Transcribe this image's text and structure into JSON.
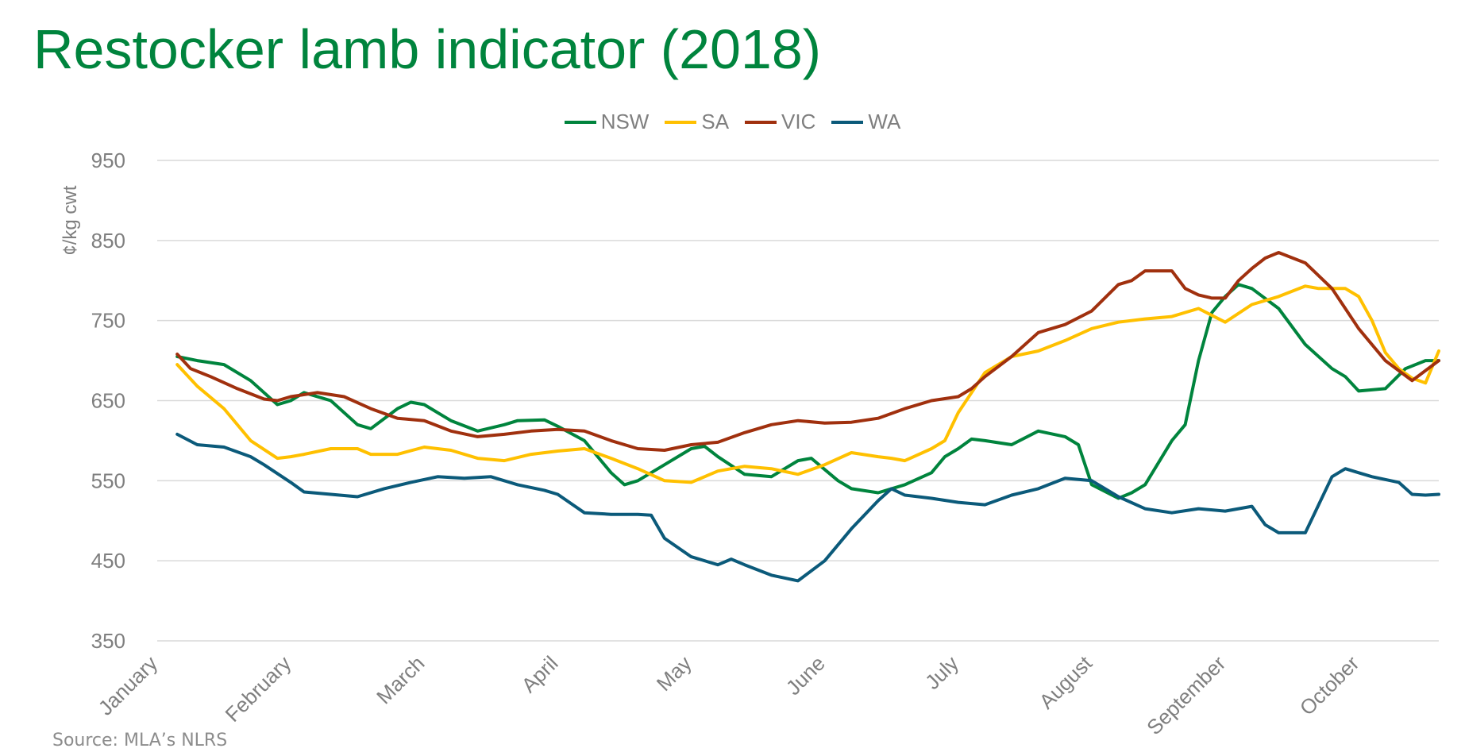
{
  "title": "Restocker lamb indicator (2018)",
  "source": "Source: MLA’s NLRS",
  "chart_data": {
    "type": "line",
    "title": "Restocker lamb indicator (2018)",
    "ylabel": "¢/kg cwt",
    "xlabel": "",
    "ylim": [
      350,
      950
    ],
    "yticks": [
      350,
      450,
      550,
      650,
      750,
      850,
      950
    ],
    "xlim": [
      0,
      9.6
    ],
    "months": [
      "January",
      "February",
      "March",
      "April",
      "May",
      "June",
      "July",
      "August",
      "September",
      "October"
    ],
    "grid": true,
    "legend_position": "top-center",
    "series": [
      {
        "name": "NSW",
        "color": "#00843D",
        "x": [
          0.15,
          0.3,
          0.5,
          0.7,
          0.9,
          1.0,
          1.1,
          1.3,
          1.5,
          1.6,
          1.8,
          1.9,
          2.0,
          2.2,
          2.4,
          2.6,
          2.7,
          2.9,
          3.0,
          3.2,
          3.3,
          3.4,
          3.5,
          3.6,
          3.8,
          4.0,
          4.1,
          4.2,
          4.4,
          4.6,
          4.8,
          4.9,
          5.1,
          5.2,
          5.4,
          5.6,
          5.8,
          5.9,
          6.0,
          6.1,
          6.2,
          6.4,
          6.6,
          6.8,
          6.9,
          7.0,
          7.2,
          7.3,
          7.4,
          7.6,
          7.7,
          7.8,
          7.9,
          8.0,
          8.1,
          8.2,
          8.4,
          8.6,
          8.8,
          8.9,
          9.0,
          9.2,
          9.35,
          9.5,
          9.6
        ],
        "values": [
          705,
          700,
          695,
          675,
          645,
          650,
          660,
          650,
          620,
          615,
          640,
          648,
          645,
          625,
          612,
          620,
          625,
          626,
          618,
          600,
          580,
          560,
          545,
          550,
          570,
          590,
          593,
          580,
          558,
          555,
          575,
          578,
          550,
          540,
          535,
          545,
          560,
          580,
          590,
          602,
          600,
          595,
          612,
          605,
          595,
          545,
          528,
          535,
          545,
          600,
          620,
          700,
          760,
          780,
          795,
          790,
          765,
          720,
          690,
          680,
          662,
          665,
          690,
          700,
          700
        ]
      },
      {
        "name": "SA",
        "color": "#FFC000",
        "x": [
          0.15,
          0.3,
          0.5,
          0.7,
          0.9,
          1.0,
          1.1,
          1.3,
          1.5,
          1.6,
          1.8,
          2.0,
          2.2,
          2.4,
          2.6,
          2.8,
          3.0,
          3.2,
          3.4,
          3.6,
          3.8,
          4.0,
          4.2,
          4.4,
          4.6,
          4.8,
          5.0,
          5.2,
          5.4,
          5.5,
          5.6,
          5.8,
          5.9,
          6.0,
          6.1,
          6.2,
          6.4,
          6.6,
          6.8,
          7.0,
          7.2,
          7.4,
          7.6,
          7.8,
          8.0,
          8.2,
          8.4,
          8.6,
          8.7,
          8.9,
          9.0,
          9.1,
          9.2,
          9.3,
          9.4,
          9.5,
          9.6
        ],
        "values": [
          695,
          668,
          640,
          600,
          578,
          580,
          583,
          590,
          590,
          583,
          583,
          592,
          588,
          578,
          575,
          583,
          587,
          590,
          578,
          565,
          550,
          548,
          562,
          568,
          565,
          558,
          570,
          585,
          580,
          578,
          575,
          590,
          600,
          635,
          660,
          685,
          705,
          712,
          725,
          740,
          748,
          752,
          755,
          765,
          748,
          770,
          780,
          793,
          790,
          790,
          780,
          750,
          710,
          690,
          678,
          672,
          712
        ]
      },
      {
        "name": "VIC",
        "color": "#A0300E",
        "x": [
          0.15,
          0.25,
          0.4,
          0.6,
          0.8,
          0.9,
          1.0,
          1.2,
          1.4,
          1.6,
          1.8,
          2.0,
          2.2,
          2.4,
          2.6,
          2.8,
          3.0,
          3.2,
          3.4,
          3.6,
          3.8,
          4.0,
          4.2,
          4.4,
          4.6,
          4.8,
          5.0,
          5.2,
          5.4,
          5.6,
          5.8,
          6.0,
          6.1,
          6.2,
          6.4,
          6.6,
          6.8,
          7.0,
          7.2,
          7.3,
          7.4,
          7.6,
          7.7,
          7.8,
          7.9,
          8.0,
          8.1,
          8.2,
          8.3,
          8.4,
          8.6,
          8.8,
          9.0,
          9.2,
          9.4,
          9.6
        ],
        "values": [
          708,
          690,
          680,
          665,
          652,
          650,
          655,
          660,
          655,
          640,
          628,
          625,
          612,
          605,
          608,
          612,
          614,
          612,
          600,
          590,
          588,
          595,
          598,
          610,
          620,
          625,
          622,
          623,
          628,
          640,
          650,
          655,
          665,
          680,
          705,
          735,
          745,
          762,
          795,
          800,
          812,
          812,
          790,
          782,
          778,
          778,
          800,
          815,
          828,
          835,
          822,
          790,
          740,
          700,
          675,
          700
        ]
      },
      {
        "name": "WA",
        "color": "#0B5A7A",
        "x": [
          0.15,
          0.3,
          0.5,
          0.7,
          0.8,
          1.0,
          1.1,
          1.3,
          1.5,
          1.7,
          1.9,
          2.1,
          2.3,
          2.5,
          2.7,
          2.9,
          3.0,
          3.2,
          3.4,
          3.6,
          3.7,
          3.8,
          4.0,
          4.2,
          4.3,
          4.4,
          4.6,
          4.8,
          5.0,
          5.2,
          5.4,
          5.5,
          5.6,
          5.8,
          6.0,
          6.2,
          6.4,
          6.6,
          6.8,
          7.0,
          7.2,
          7.4,
          7.6,
          7.8,
          8.0,
          8.2,
          8.3,
          8.4,
          8.6,
          8.7,
          8.8,
          8.9,
          9.0,
          9.1,
          9.3,
          9.4,
          9.5,
          9.6
        ],
        "values": [
          608,
          595,
          592,
          580,
          570,
          548,
          536,
          533,
          530,
          540,
          548,
          555,
          553,
          555,
          545,
          538,
          533,
          510,
          508,
          508,
          507,
          478,
          455,
          445,
          452,
          445,
          432,
          425,
          450,
          490,
          525,
          540,
          532,
          528,
          523,
          520,
          532,
          540,
          553,
          550,
          530,
          515,
          510,
          515,
          512,
          518,
          495,
          485,
          485,
          520,
          555,
          565,
          560,
          555,
          548,
          533,
          532,
          533
        ]
      }
    ]
  }
}
